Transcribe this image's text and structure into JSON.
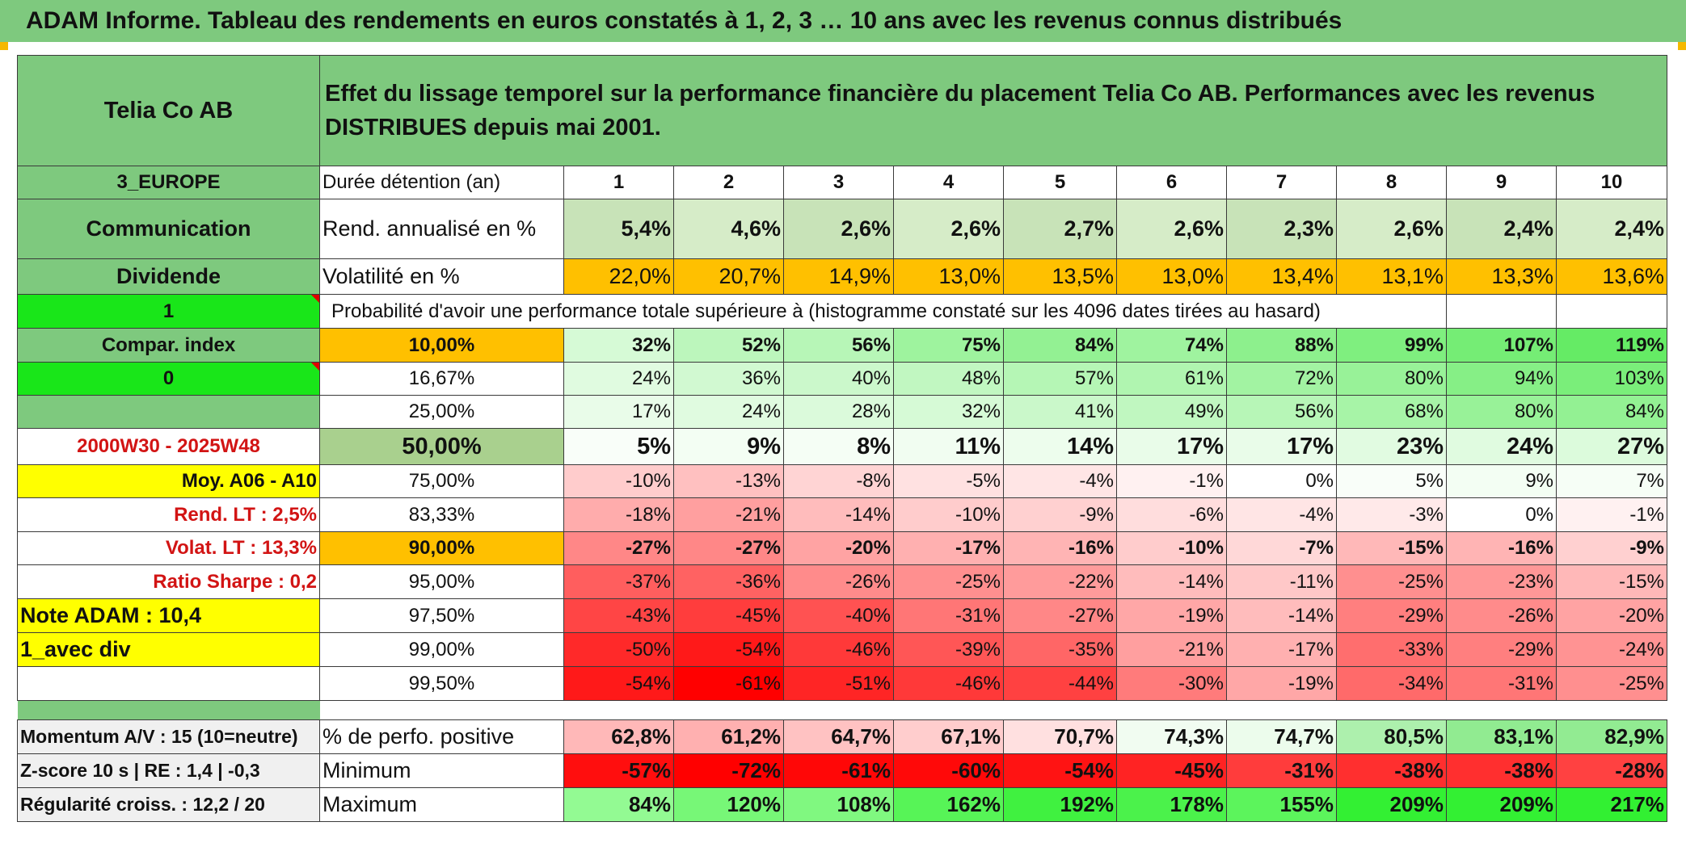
{
  "report_title": "ADAM Informe. Tableau des rendements en euros constatés à 1, 2, 3 … 10 ans avec les revenus connus distribués",
  "asset_name": "Telia Co AB",
  "description": "Effet du lissage temporel sur la performance financière du placement Telia Co AB. Performances avec les revenus DISTRIBUES depuis mai 2001.",
  "side": {
    "region": "3_EUROPE",
    "sector": "Communication",
    "dividend": "Dividende",
    "flag1": "1",
    "compar_index": "Compar. index",
    "flag0": "0",
    "period": "2000W30 - 2025W48",
    "moy": "Moy. A06 - A10",
    "rend_lt": "Rend. LT :   2,5%",
    "volat_lt": "Volat. LT :   13,3%",
    "sharpe": "Ratio Sharpe :   0,2",
    "note_adam": "Note ADAM : 10,4",
    "avec_div": "1_avec div"
  },
  "labels": {
    "duree": "Durée détention (an)",
    "rend": "Rend. annualisé en %",
    "vol": "Volatilité en %",
    "proba": "Probabilité d'avoir une performance totale supérieure à (histogramme constaté sur les 4096 dates tirées au hasard)"
  },
  "years": [
    "1",
    "2",
    "3",
    "4",
    "5",
    "6",
    "7",
    "8",
    "9",
    "10"
  ],
  "rend_values": [
    "5,4%",
    "4,6%",
    "2,6%",
    "2,6%",
    "2,7%",
    "2,6%",
    "2,3%",
    "2,6%",
    "2,4%",
    "2,4%"
  ],
  "vol_values": [
    "22,0%",
    "20,7%",
    "14,9%",
    "13,0%",
    "13,5%",
    "13,0%",
    "13,4%",
    "13,1%",
    "13,3%",
    "13,6%"
  ],
  "prob_rows": [
    {
      "threshold": "10,00%",
      "values": [
        "32%",
        "52%",
        "56%",
        "75%",
        "84%",
        "74%",
        "88%",
        "99%",
        "107%",
        "119%"
      ]
    },
    {
      "threshold": "16,67%",
      "values": [
        "24%",
        "36%",
        "40%",
        "48%",
        "57%",
        "61%",
        "72%",
        "80%",
        "94%",
        "103%"
      ]
    },
    {
      "threshold": "25,00%",
      "values": [
        "17%",
        "24%",
        "28%",
        "32%",
        "41%",
        "49%",
        "56%",
        "68%",
        "80%",
        "84%"
      ]
    },
    {
      "threshold": "50,00%",
      "values": [
        "5%",
        "9%",
        "8%",
        "11%",
        "14%",
        "17%",
        "17%",
        "23%",
        "24%",
        "27%"
      ]
    },
    {
      "threshold": "75,00%",
      "values": [
        "-10%",
        "-13%",
        "-8%",
        "-5%",
        "-4%",
        "-1%",
        "0%",
        "5%",
        "9%",
        "7%"
      ]
    },
    {
      "threshold": "83,33%",
      "values": [
        "-18%",
        "-21%",
        "-14%",
        "-10%",
        "-9%",
        "-6%",
        "-4%",
        "-3%",
        "0%",
        "-1%"
      ]
    },
    {
      "threshold": "90,00%",
      "values": [
        "-27%",
        "-27%",
        "-20%",
        "-17%",
        "-16%",
        "-10%",
        "-7%",
        "-15%",
        "-16%",
        "-9%"
      ]
    },
    {
      "threshold": "95,00%",
      "values": [
        "-37%",
        "-36%",
        "-26%",
        "-25%",
        "-22%",
        "-14%",
        "-11%",
        "-25%",
        "-23%",
        "-15%"
      ]
    },
    {
      "threshold": "97,50%",
      "values": [
        "-43%",
        "-45%",
        "-40%",
        "-31%",
        "-27%",
        "-19%",
        "-14%",
        "-29%",
        "-26%",
        "-20%"
      ]
    },
    {
      "threshold": "99,00%",
      "values": [
        "-50%",
        "-54%",
        "-46%",
        "-39%",
        "-35%",
        "-21%",
        "-17%",
        "-33%",
        "-29%",
        "-24%"
      ]
    },
    {
      "threshold": "99,50%",
      "values": [
        "-54%",
        "-61%",
        "-51%",
        "-46%",
        "-44%",
        "-30%",
        "-19%",
        "-34%",
        "-31%",
        "-25%"
      ]
    }
  ],
  "footer": {
    "momentum": "Momentum A/V : 15 (10=neutre)",
    "zscore": "Z-score 10 s | RE : 1,4 | -0,3",
    "regularite": "Régularité croiss. : 12,2 / 20",
    "pos_label": "% de perfo. positive",
    "min_label": "Minimum",
    "max_label": "Maximum",
    "pos_values": [
      "62,8%",
      "61,2%",
      "64,7%",
      "67,1%",
      "70,7%",
      "74,3%",
      "74,7%",
      "80,5%",
      "83,1%",
      "82,9%"
    ],
    "min_values": [
      "-57%",
      "-72%",
      "-61%",
      "-60%",
      "-54%",
      "-45%",
      "-31%",
      "-38%",
      "-38%",
      "-28%"
    ],
    "max_values": [
      "84%",
      "120%",
      "108%",
      "162%",
      "192%",
      "178%",
      "155%",
      "209%",
      "209%",
      "217%"
    ]
  },
  "colors": {
    "header_green": "#7ec97e",
    "bright_green": "#19e619",
    "yellow": "#ffff00",
    "orange": "#ffc000",
    "red_text": "#d21414"
  }
}
